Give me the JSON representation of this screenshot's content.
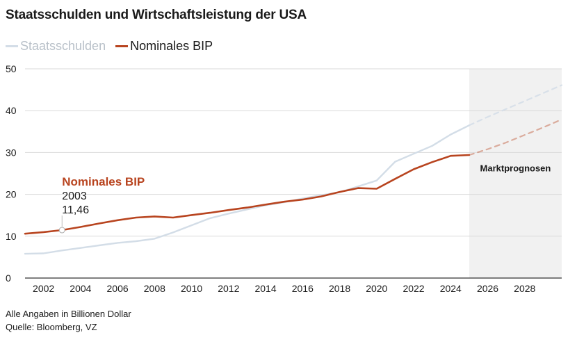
{
  "title": "Staatsschulden und Wirtschaftsleistung der USA",
  "footer": {
    "unit_note": "Alle Angaben in Billionen Dollar",
    "source": "Quelle: Bloomberg, VZ"
  },
  "colors": {
    "debt": "#d3dde7",
    "gdp": "#b8441f",
    "forecast_bg": "#f1f1f1",
    "grid": "#d9d9d9",
    "axis": "#333333"
  },
  "chart_data": {
    "type": "line",
    "title": "Staatsschulden und Wirtschaftsleistung der USA",
    "xlabel": "",
    "ylabel": "",
    "xlim": [
      2001,
      2030
    ],
    "ylim": [
      0,
      50
    ],
    "grid": true,
    "legend": "top-left",
    "x_ticks": [
      "2002",
      "2004",
      "2006",
      "2008",
      "2010",
      "2012",
      "2014",
      "2016",
      "2018",
      "2020",
      "2022",
      "2024",
      "2026",
      "2028"
    ],
    "y_ticks": [
      "0",
      "10",
      "20",
      "30",
      "40",
      "50"
    ],
    "forecast": {
      "label": "Marktprognosen",
      "x_start": 2025,
      "x_end": 2030
    },
    "annotation": {
      "label": "Nominales BIP",
      "x_text": "2003",
      "y_text": "11,46",
      "x": 2003,
      "y": 11.46
    },
    "series": [
      {
        "name": "Staatsschulden",
        "color": "#d3dde7",
        "x": [
          2001,
          2002,
          2003,
          2004,
          2005,
          2006,
          2007,
          2008,
          2009,
          2010,
          2011,
          2012,
          2013,
          2014,
          2015,
          2016,
          2017,
          2018,
          2019,
          2020,
          2021,
          2022,
          2023,
          2024,
          2025
        ],
        "y": [
          5.8,
          5.9,
          6.6,
          7.2,
          7.8,
          8.4,
          8.8,
          9.4,
          10.9,
          12.6,
          14.3,
          15.4,
          16.4,
          17.4,
          18.1,
          19.0,
          19.8,
          20.5,
          21.9,
          23.3,
          27.8,
          29.7,
          31.6,
          34.3,
          36.5
        ]
      },
      {
        "name": "Staatsschulden Prognose",
        "color": "#d3dde7",
        "dashed": true,
        "x": [
          2025,
          2026,
          2027,
          2028,
          2029,
          2030
        ],
        "y": [
          36.5,
          38.5,
          40.4,
          42.3,
          44.2,
          46.1
        ]
      },
      {
        "name": "Nominales BIP",
        "color": "#b8441f",
        "x": [
          2001,
          2002,
          2003,
          2004,
          2005,
          2006,
          2007,
          2008,
          2009,
          2010,
          2011,
          2012,
          2013,
          2014,
          2015,
          2016,
          2017,
          2018,
          2019,
          2020,
          2021,
          2022,
          2023,
          2024,
          2025
        ],
        "y": [
          10.6,
          10.98,
          11.46,
          12.21,
          13.04,
          13.82,
          14.45,
          14.71,
          14.45,
          15.05,
          15.6,
          16.25,
          16.84,
          17.55,
          18.24,
          18.75,
          19.5,
          20.58,
          21.5,
          21.35,
          23.7,
          26.0,
          27.7,
          29.2,
          29.4
        ]
      },
      {
        "name": "Nominales BIP Prognose",
        "color": "#b8441f",
        "dashed": true,
        "x": [
          2025,
          2026,
          2027,
          2028,
          2029,
          2030
        ],
        "y": [
          29.4,
          30.8,
          32.4,
          34.2,
          36.0,
          37.9
        ]
      }
    ]
  },
  "legend": [
    {
      "label": "Staatsschulden",
      "color": "#d3dde7"
    },
    {
      "label": "Nominales BIP",
      "color": "#b8441f"
    }
  ]
}
